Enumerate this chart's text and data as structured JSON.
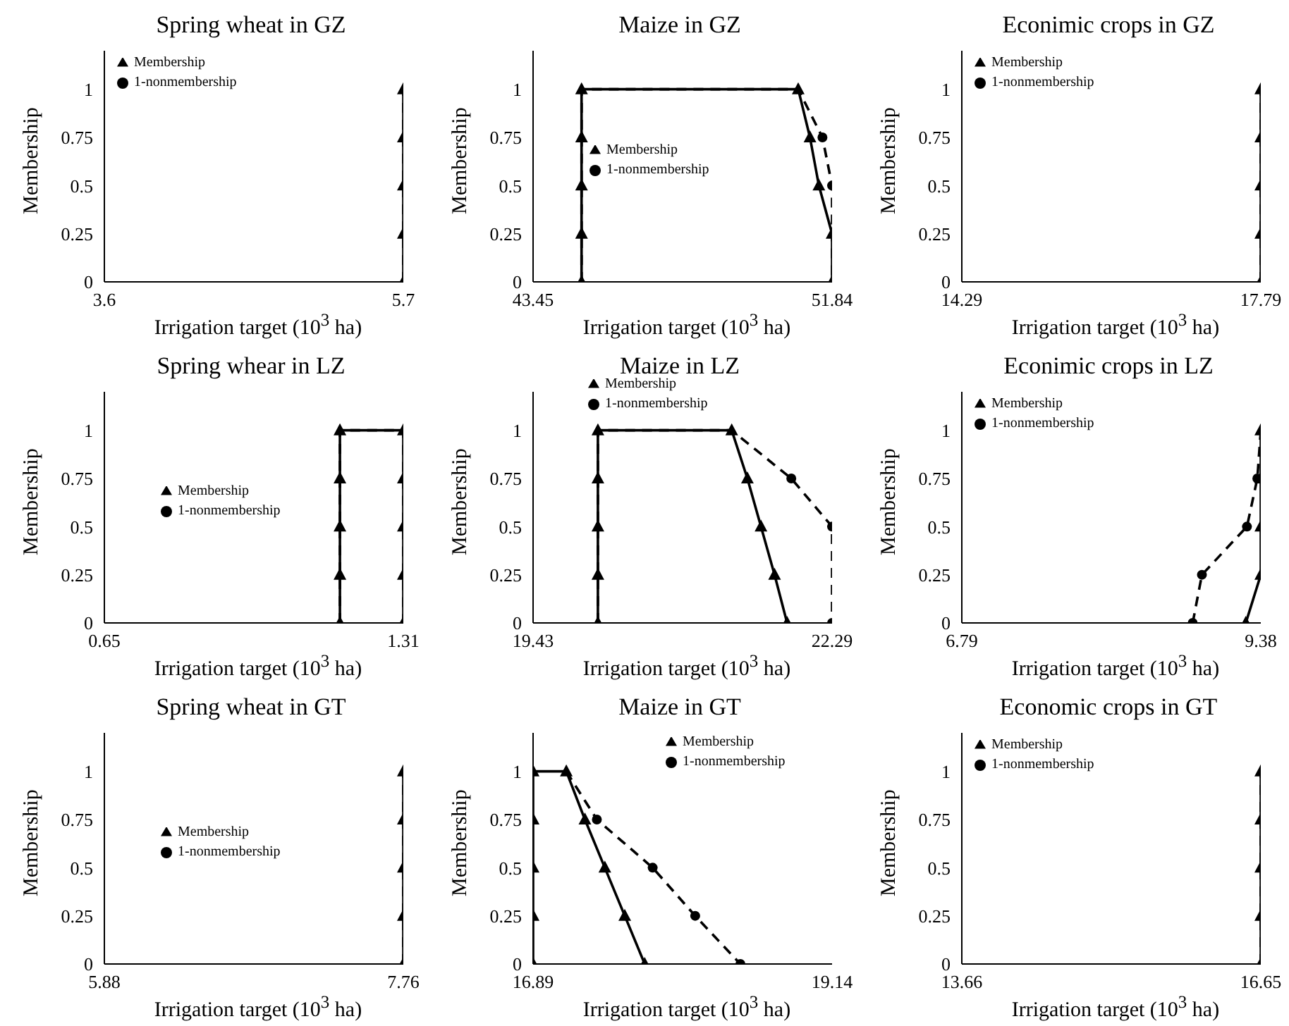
{
  "chart_data": [
    {
      "type": "line",
      "title": "Spring wheat in GZ",
      "xlabel": "Irrigation target (10$^{3}$ ha)",
      "ylabel": "Membership",
      "xlim": [
        3.6,
        5.7
      ],
      "xticks": [
        3.6,
        5.7
      ],
      "ylim": [
        0,
        1.2
      ],
      "yticks": [
        0,
        0.25,
        0.5,
        0.75,
        1
      ],
      "legend": "top left",
      "series": [
        {
          "name": "Membership",
          "color": "#000000",
          "line_style": "solid",
          "marker": "triangle",
          "x": [
            5.7,
            5.7,
            5.7,
            5.7,
            5.7
          ],
          "values": [
            0,
            0.25,
            0.5,
            0.75,
            1
          ]
        },
        {
          "name": "1-nonmembership",
          "color": "#000000",
          "line_style": "dashed",
          "marker": "circle",
          "x": [
            5.7,
            5.7,
            5.7,
            5.7,
            5.7
          ],
          "values": [
            0,
            0.25,
            0.5,
            0.75,
            1
          ]
        }
      ]
    },
    {
      "type": "line",
      "title": "Maize in GZ",
      "xlabel": "Irrigation target (10$^{3}$ ha)",
      "ylabel": "Membership",
      "xlim": [
        43.45,
        51.84
      ],
      "xticks": [
        43.45,
        51.84
      ],
      "ylim": [
        0,
        1.2
      ],
      "yticks": [
        0,
        0.25,
        0.5,
        0.75,
        1
      ],
      "legend": "left",
      "series": [
        {
          "name": "Membership",
          "color": "#000000",
          "line_style": "solid",
          "marker": "triangle",
          "x": [
            44.81,
            44.81,
            44.81,
            44.81,
            44.81,
            50.89,
            51.22,
            51.47,
            51.84,
            51.84
          ],
          "values": [
            0,
            0.25,
            0.5,
            0.75,
            1,
            1,
            0.75,
            0.5,
            0.25,
            0
          ]
        },
        {
          "name": "1-nonmembership",
          "color": "#000000",
          "line_style": "dashed",
          "marker": "circle",
          "x": [
            44.81,
            44.81,
            44.81,
            44.81,
            44.81,
            50.89,
            51.57,
            51.84,
            51.84,
            51.84
          ],
          "values": [
            0,
            0.25,
            0.5,
            0.75,
            1,
            1,
            0.75,
            0.5,
            0.25,
            0
          ]
        }
      ]
    },
    {
      "type": "line",
      "title": "Econimic crops in GZ",
      "xlabel": "Irrigation target (10$^{3}$ ha)",
      "ylabel": "Membership",
      "xlim": [
        14.29,
        17.79
      ],
      "xticks": [
        14.29,
        17.79
      ],
      "ylim": [
        0,
        1.2
      ],
      "yticks": [
        0,
        0.25,
        0.5,
        0.75,
        1
      ],
      "legend": "top left",
      "series": [
        {
          "name": "Membership",
          "color": "#000000",
          "line_style": "solid",
          "marker": "triangle",
          "x": [
            17.79,
            17.79,
            17.79,
            17.79,
            17.79
          ],
          "values": [
            0,
            0.25,
            0.5,
            0.75,
            1
          ]
        },
        {
          "name": "1-nonmembership",
          "color": "#000000",
          "line_style": "dashed",
          "marker": "circle",
          "x": [
            17.79,
            17.79,
            17.79,
            17.79,
            17.79
          ],
          "values": [
            0,
            0.25,
            0.5,
            0.75,
            1
          ]
        }
      ]
    },
    {
      "type": "line",
      "title": "Spring whear in LZ",
      "xlabel": "Irrigation target (10$^{3}$ ha)",
      "ylabel": "Membership",
      "xlim": [
        0.65,
        1.31
      ],
      "xticks": [
        0.65,
        1.31
      ],
      "ylim": [
        0,
        1.2
      ],
      "yticks": [
        0,
        0.25,
        0.5,
        0.75,
        1
      ],
      "legend": "left",
      "series": [
        {
          "name": "Membership",
          "color": "#000000",
          "line_style": "solid",
          "marker": "triangle",
          "x": [
            1.17,
            1.17,
            1.17,
            1.17,
            1.17,
            1.31,
            1.31,
            1.31,
            1.31,
            1.31
          ],
          "values": [
            0,
            0.25,
            0.5,
            0.75,
            1,
            1,
            0.75,
            0.5,
            0.25,
            0
          ]
        },
        {
          "name": "1-nonmembership",
          "color": "#000000",
          "line_style": "dashed",
          "marker": "circle",
          "x": [
            1.17,
            1.17,
            1.17,
            1.17,
            1.17,
            1.31,
            1.31,
            1.31,
            1.31,
            1.31
          ],
          "values": [
            0,
            0.25,
            0.5,
            0.75,
            1,
            1,
            0.75,
            0.5,
            0.25,
            0
          ]
        }
      ]
    },
    {
      "type": "line",
      "title": "Maize in LZ",
      "xlabel": "Irrigation target (10$^{3}$ ha)",
      "ylabel": "Membership",
      "xlim": [
        19.43,
        22.29
      ],
      "xticks": [
        19.43,
        22.29
      ],
      "ylim": [
        0,
        1.2
      ],
      "yticks": [
        0,
        0.25,
        0.5,
        0.75,
        1
      ],
      "legend": "top",
      "series": [
        {
          "name": "Membership",
          "color": "#000000",
          "line_style": "solid",
          "marker": "triangle",
          "x": [
            20.05,
            20.05,
            20.05,
            20.05,
            20.05,
            21.33,
            21.48,
            21.61,
            21.74,
            21.86
          ],
          "values": [
            0,
            0.25,
            0.5,
            0.75,
            1,
            1,
            0.75,
            0.5,
            0.25,
            0
          ]
        },
        {
          "name": "1-nonmembership",
          "color": "#000000",
          "line_style": "dashed",
          "marker": "circle",
          "x": [
            20.05,
            20.05,
            20.05,
            20.05,
            20.05,
            21.33,
            21.9,
            22.29,
            22.29
          ],
          "values": [
            0,
            0.25,
            0.5,
            0.75,
            1,
            1,
            0.75,
            0.5,
            0
          ]
        }
      ]
    },
    {
      "type": "line",
      "title": "Econimic crops in LZ",
      "xlabel": "Irrigation target (10$^{3}$ ha)",
      "ylabel": "Membership",
      "xlim": [
        6.79,
        9.38
      ],
      "xticks": [
        6.79,
        9.38
      ],
      "ylim": [
        0,
        1.2
      ],
      "yticks": [
        0,
        0.25,
        0.5,
        0.75,
        1
      ],
      "legend": "top left",
      "series": [
        {
          "name": "Membership",
          "color": "#000000",
          "line_style": "solid",
          "marker": "triangle",
          "x": [
            9.25,
            9.38,
            9.38,
            9.38,
            9.38
          ],
          "values": [
            0,
            0.25,
            0.5,
            0.75,
            1
          ]
        },
        {
          "name": "1-nonmembership",
          "color": "#000000",
          "line_style": "dashed",
          "marker": "circle",
          "x": [
            8.79,
            8.87,
            9.26,
            9.35,
            9.38
          ],
          "values": [
            0,
            0.25,
            0.5,
            0.75,
            1
          ]
        }
      ]
    },
    {
      "type": "line",
      "title": "Spring wheat in GT",
      "xlabel": "Irrigation target (10$^{3}$ ha)",
      "ylabel": "Membership",
      "xlim": [
        5.88,
        7.76
      ],
      "xticks": [
        5.88,
        7.76
      ],
      "ylim": [
        0,
        1.2
      ],
      "yticks": [
        0,
        0.25,
        0.5,
        0.75,
        1
      ],
      "legend": "left",
      "series": [
        {
          "name": "Membership",
          "color": "#000000",
          "line_style": "solid",
          "marker": "triangle",
          "x": [
            7.76,
            7.76,
            7.76,
            7.76,
            7.76
          ],
          "values": [
            0,
            0.25,
            0.5,
            0.75,
            1
          ]
        },
        {
          "name": "1-nonmembership",
          "color": "#000000",
          "line_style": "dashed",
          "marker": "circle",
          "x": [
            7.76,
            7.76,
            7.76,
            7.76,
            7.76
          ],
          "values": [
            0,
            0.25,
            0.5,
            0.75,
            1
          ]
        }
      ]
    },
    {
      "type": "line",
      "title": "Maize in GT",
      "xlabel": "Irrigation target (10$^{3}$ ha)",
      "ylabel": "Membership",
      "xlim": [
        16.89,
        19.14
      ],
      "xticks": [
        16.89,
        19.14
      ],
      "ylim": [
        0,
        1.2
      ],
      "yticks": [
        0,
        0.25,
        0.5,
        0.75,
        1
      ],
      "legend": "top right",
      "series": [
        {
          "name": "Membership",
          "color": "#000000",
          "line_style": "solid",
          "marker": "triangle",
          "x": [
            16.89,
            16.89,
            16.89,
            16.89,
            16.89,
            17.14,
            17.28,
            17.43,
            17.58,
            17.73
          ],
          "values": [
            0,
            0.25,
            0.5,
            0.75,
            1,
            1,
            0.75,
            0.5,
            0.25,
            0
          ]
        },
        {
          "name": "1-nonmembership",
          "color": "#000000",
          "line_style": "dashed",
          "marker": "circle",
          "x": [
            17.14,
            17.37,
            17.79,
            18.11,
            18.45
          ],
          "values": [
            1,
            0.75,
            0.5,
            0.25,
            0
          ]
        }
      ]
    },
    {
      "type": "line",
      "title": "Economic crops in GT",
      "xlabel": "Irrigation target (10$^{3}$ ha)",
      "ylabel": "Membership",
      "xlim": [
        13.66,
        16.65
      ],
      "xticks": [
        13.66,
        16.65
      ],
      "ylim": [
        0,
        1.2
      ],
      "yticks": [
        0,
        0.25,
        0.5,
        0.75,
        1
      ],
      "legend": "top left",
      "series": [
        {
          "name": "Membership",
          "color": "#000000",
          "line_style": "solid",
          "marker": "triangle",
          "x": [
            16.65,
            16.65,
            16.65,
            16.65,
            16.65
          ],
          "values": [
            0,
            0.25,
            0.5,
            0.75,
            1
          ]
        },
        {
          "name": "1-nonmembership",
          "color": "#000000",
          "line_style": "dashed",
          "marker": "circle",
          "x": [
            16.65,
            16.65,
            16.65,
            16.65,
            16.65
          ],
          "values": [
            0,
            0.25,
            0.5,
            0.75,
            1
          ]
        }
      ]
    }
  ]
}
